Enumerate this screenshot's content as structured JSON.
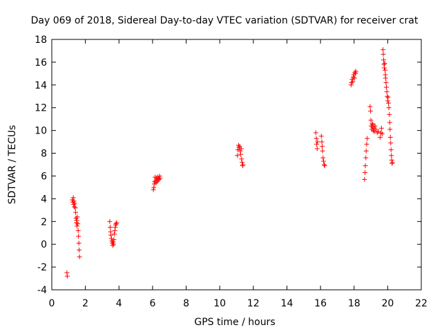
{
  "chart_data": {
    "type": "scatter",
    "title": "Day 069 of 2018, Sidereal Day-to-day VTEC variation (SDTVAR) for receiver crat",
    "xlabel": "GPS time / hours",
    "ylabel": "SDTVAR / TECUs",
    "xlim": [
      0,
      22
    ],
    "ylim": [
      -4,
      18
    ],
    "xticks": [
      0,
      2,
      4,
      6,
      8,
      10,
      12,
      14,
      16,
      18,
      20,
      22
    ],
    "yticks": [
      -4,
      -2,
      0,
      2,
      4,
      6,
      8,
      10,
      12,
      14,
      16,
      18
    ],
    "grid": false,
    "marker": "+",
    "colors": {
      "series": "#ff0000",
      "axis": "#000000",
      "background": "#ffffff"
    },
    "series": [
      {
        "name": "SDTVAR",
        "points": [
          [
            0.9,
            -2.5
          ],
          [
            0.92,
            -2.8
          ],
          [
            1.22,
            3.9
          ],
          [
            1.25,
            3.7
          ],
          [
            1.28,
            4.1
          ],
          [
            1.3,
            3.5
          ],
          [
            1.32,
            3.8
          ],
          [
            1.34,
            3.3
          ],
          [
            1.37,
            3.6
          ],
          [
            1.4,
            3.2
          ],
          [
            1.42,
            2.8
          ],
          [
            1.44,
            2.3
          ],
          [
            1.46,
            1.9
          ],
          [
            1.48,
            2.1
          ],
          [
            1.5,
            1.6
          ],
          [
            1.52,
            2.4
          ],
          [
            1.55,
            1.8
          ],
          [
            1.57,
            1.2
          ],
          [
            1.59,
            0.7
          ],
          [
            1.61,
            0.1
          ],
          [
            1.63,
            -0.5
          ],
          [
            1.65,
            -1.1
          ],
          [
            3.45,
            2.0
          ],
          [
            3.48,
            1.5
          ],
          [
            3.5,
            1.1
          ],
          [
            3.52,
            0.8
          ],
          [
            3.55,
            0.5
          ],
          [
            3.58,
            0.3
          ],
          [
            3.6,
            0.1
          ],
          [
            3.62,
            -0.1
          ],
          [
            3.65,
            0.2
          ],
          [
            3.68,
            0.0
          ],
          [
            3.7,
            0.4
          ],
          [
            3.72,
            0.9
          ],
          [
            3.75,
            1.2
          ],
          [
            3.78,
            1.5
          ],
          [
            3.8,
            1.7
          ],
          [
            3.83,
            1.8
          ],
          [
            3.86,
            1.9
          ],
          [
            6.05,
            4.8
          ],
          [
            6.08,
            5.0
          ],
          [
            6.1,
            5.3
          ],
          [
            6.12,
            5.5
          ],
          [
            6.15,
            5.9
          ],
          [
            6.18,
            5.6
          ],
          [
            6.2,
            5.4
          ],
          [
            6.23,
            5.8
          ],
          [
            6.26,
            5.5
          ],
          [
            6.29,
            5.9
          ],
          [
            6.32,
            5.6
          ],
          [
            6.35,
            5.8
          ],
          [
            6.38,
            5.7
          ],
          [
            6.42,
            6.0
          ],
          [
            6.45,
            5.8
          ],
          [
            11.05,
            7.8
          ],
          [
            11.08,
            8.3
          ],
          [
            11.12,
            8.7
          ],
          [
            11.15,
            8.5
          ],
          [
            11.18,
            8.6
          ],
          [
            11.22,
            8.2
          ],
          [
            11.25,
            7.9
          ],
          [
            11.28,
            8.4
          ],
          [
            11.3,
            7.5
          ],
          [
            11.33,
            7.2
          ],
          [
            11.36,
            6.9
          ],
          [
            11.38,
            7.0
          ],
          [
            15.72,
            9.8
          ],
          [
            15.75,
            9.3
          ],
          [
            15.77,
            8.8
          ],
          [
            15.8,
            8.4
          ],
          [
            15.82,
            9.0
          ],
          [
            16.05,
            9.5
          ],
          [
            16.08,
            9.0
          ],
          [
            16.1,
            8.6
          ],
          [
            16.12,
            8.2
          ],
          [
            16.15,
            7.6
          ],
          [
            16.18,
            7.3
          ],
          [
            16.22,
            7.0
          ],
          [
            16.25,
            6.9
          ],
          [
            17.82,
            14.0
          ],
          [
            17.85,
            14.2
          ],
          [
            17.88,
            14.5
          ],
          [
            17.92,
            14.3
          ],
          [
            17.95,
            14.7
          ],
          [
            17.98,
            14.9
          ],
          [
            18.02,
            14.6
          ],
          [
            18.05,
            15.1
          ],
          [
            18.08,
            15.0
          ],
          [
            18.1,
            15.2
          ],
          [
            18.62,
            5.7
          ],
          [
            18.65,
            6.3
          ],
          [
            18.67,
            6.9
          ],
          [
            18.7,
            7.6
          ],
          [
            18.72,
            8.2
          ],
          [
            18.75,
            8.8
          ],
          [
            18.78,
            9.3
          ],
          [
            18.95,
            12.1
          ],
          [
            18.98,
            11.7
          ],
          [
            19.0,
            10.9
          ],
          [
            19.02,
            10.4
          ],
          [
            19.05,
            10.1
          ],
          [
            19.08,
            10.6
          ],
          [
            19.1,
            10.3
          ],
          [
            19.12,
            10.5
          ],
          [
            19.15,
            10.0
          ],
          [
            19.18,
            10.2
          ],
          [
            19.2,
            9.9
          ],
          [
            19.25,
            10.4
          ],
          [
            19.3,
            10.1
          ],
          [
            19.38,
            9.8
          ],
          [
            19.45,
            9.9
          ],
          [
            19.55,
            9.4
          ],
          [
            19.6,
            9.8
          ],
          [
            19.63,
            10.2
          ],
          [
            19.67,
            9.7
          ],
          [
            19.72,
            17.1
          ],
          [
            19.74,
            16.7
          ],
          [
            19.76,
            16.2
          ],
          [
            19.78,
            15.8
          ],
          [
            19.8,
            15.5
          ],
          [
            19.82,
            15.9
          ],
          [
            19.84,
            15.3
          ],
          [
            19.86,
            14.9
          ],
          [
            19.88,
            14.6
          ],
          [
            19.9,
            14.2
          ],
          [
            19.92,
            13.8
          ],
          [
            19.95,
            13.4
          ],
          [
            19.98,
            13.0
          ],
          [
            20.0,
            12.6
          ],
          [
            20.02,
            12.9
          ],
          [
            20.05,
            12.4
          ],
          [
            20.07,
            12.0
          ],
          [
            20.1,
            11.4
          ],
          [
            20.12,
            10.7
          ],
          [
            20.14,
            10.1
          ],
          [
            20.16,
            9.4
          ],
          [
            20.18,
            8.9
          ],
          [
            20.2,
            8.3
          ],
          [
            20.22,
            7.8
          ],
          [
            20.24,
            7.4
          ],
          [
            20.26,
            7.1
          ],
          [
            20.28,
            7.2
          ]
        ]
      }
    ]
  }
}
